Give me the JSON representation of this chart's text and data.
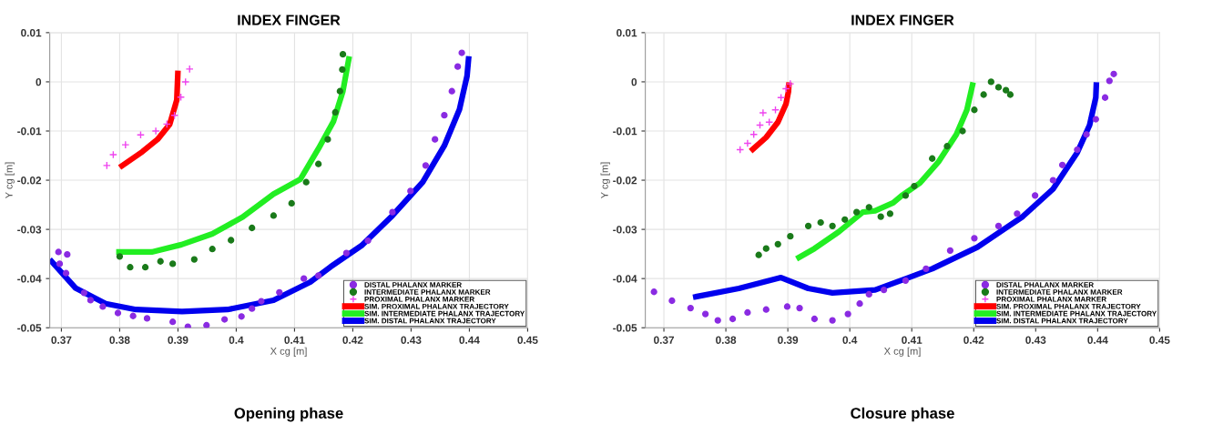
{
  "chart_data": [
    {
      "type": "scatter",
      "title": "INDEX FINGER",
      "xlabel": "X cg [m]",
      "ylabel": "Y cg [m]",
      "xlim": [
        0.368,
        0.45
      ],
      "ylim": [
        -0.05,
        0.01
      ],
      "xticks": [
        0.37,
        0.38,
        0.39,
        0.4,
        0.41,
        0.42,
        0.43,
        0.44,
        0.45
      ],
      "yticks": [
        -0.05,
        -0.04,
        -0.03,
        -0.02,
        -0.01,
        0,
        0.01
      ],
      "grid": true,
      "legend": "lower right",
      "annotations": [
        "Opening phase"
      ],
      "series": [
        {
          "name": "DISTAL PHALANX MARKER",
          "type": "scatter",
          "marker": "circle",
          "color": "#8a2be2",
          "x": [
            0.3695,
            0.3697,
            0.371,
            0.3708,
            0.3739,
            0.375,
            0.3771,
            0.3797,
            0.3823,
            0.3847,
            0.3891,
            0.3917,
            0.3949,
            0.398,
            0.4009,
            0.4027,
            0.4043,
            0.4074,
            0.4116,
            0.4141,
            0.4189,
            0.4226,
            0.4268,
            0.4299,
            0.4325,
            0.4341,
            0.4357,
            0.437,
            0.438,
            0.4387
          ],
          "values": [
            -0.0346,
            -0.037,
            -0.0351,
            -0.0389,
            -0.0429,
            -0.0444,
            -0.0457,
            -0.047,
            -0.0476,
            -0.0481,
            -0.0488,
            -0.0498,
            -0.0495,
            -0.0483,
            -0.0477,
            -0.0461,
            -0.0446,
            -0.0428,
            -0.04,
            -0.0394,
            -0.0348,
            -0.0323,
            -0.0265,
            -0.0222,
            -0.017,
            -0.0117,
            -0.0068,
            -0.0019,
            0.0031,
            0.0059
          ]
        },
        {
          "name": "INTERMEDIATE PHALANX MARKER",
          "type": "scatter",
          "marker": "circle",
          "color": "#1a7a1a",
          "x": [
            0.38,
            0.3818,
            0.3844,
            0.387,
            0.3891,
            0.3928,
            0.3959,
            0.3991,
            0.4027,
            0.4064,
            0.4095,
            0.412,
            0.4141,
            0.4157,
            0.417,
            0.4178,
            0.4182,
            0.4183
          ],
          "values": [
            -0.0355,
            -0.0377,
            -0.0377,
            -0.0365,
            -0.037,
            -0.0361,
            -0.034,
            -0.0322,
            -0.0297,
            -0.0272,
            -0.0247,
            -0.0204,
            -0.0167,
            -0.0117,
            -0.0062,
            -0.0019,
            0.0025,
            0.0056
          ]
        },
        {
          "name": "PROXIMAL PHALANX MARKER",
          "type": "scatter",
          "marker": "cross",
          "color": "#ee44ee",
          "x": [
            0.3778,
            0.3789,
            0.381,
            0.3836,
            0.3862,
            0.3881,
            0.3894,
            0.3905,
            0.3913,
            0.392
          ],
          "values": [
            -0.017,
            -0.0148,
            -0.0128,
            -0.0108,
            -0.01,
            -0.0086,
            -0.0068,
            -0.0031,
            0.0,
            0.0026
          ]
        },
        {
          "name": "SIM. PROXIMAL PHALANX TRAJECTORY",
          "type": "line",
          "color": "#ff0000",
          "x": [
            0.39,
            0.3898,
            0.3886,
            0.3865,
            0.3839,
            0.38
          ],
          "values": [
            0.0023,
            -0.0037,
            -0.0086,
            -0.0117,
            -0.0142,
            -0.0174
          ]
        },
        {
          "name": "SIM. INTERMEDIATE PHALANX TRAJECTORY",
          "type": "line",
          "color": "#22ee22",
          "x": [
            0.3794,
            0.3855,
            0.3906,
            0.3959,
            0.4011,
            0.4064,
            0.411,
            0.4141,
            0.4167,
            0.4183,
            0.4194
          ],
          "values": [
            -0.0346,
            -0.0346,
            -0.0331,
            -0.0309,
            -0.0275,
            -0.0228,
            -0.0198,
            -0.0136,
            -0.008,
            -0.0019,
            0.0052
          ]
        },
        {
          "name": "SIM. DISTAL PHALANX TRAJECTORY",
          "type": "line",
          "color": "#0000ee",
          "x": [
            0.368,
            0.3724,
            0.3776,
            0.3828,
            0.3907,
            0.3985,
            0.4064,
            0.4127,
            0.4162,
            0.4215,
            0.4268,
            0.432,
            0.4357,
            0.4383,
            0.4396,
            0.4399
          ],
          "values": [
            -0.0361,
            -0.0419,
            -0.0451,
            -0.0463,
            -0.0467,
            -0.0463,
            -0.0444,
            -0.0407,
            -0.0376,
            -0.0333,
            -0.0272,
            -0.0204,
            -0.013,
            -0.0056,
            0.0012,
            0.0052
          ]
        }
      ]
    },
    {
      "type": "scatter",
      "title": "INDEX FINGER",
      "xlabel": "X cg [m]",
      "ylabel": "Y cg [m]",
      "xlim": [
        0.367,
        0.45
      ],
      "ylim": [
        -0.05,
        0.01
      ],
      "xticks": [
        0.37,
        0.38,
        0.39,
        0.4,
        0.41,
        0.42,
        0.43,
        0.44,
        0.45
      ],
      "yticks": [
        -0.05,
        -0.04,
        -0.03,
        -0.02,
        -0.01,
        0,
        0.01
      ],
      "grid": true,
      "legend": "lower right",
      "annotations": [
        "Closure phase"
      ],
      "series": [
        {
          "name": "DISTAL PHALANX MARKER",
          "type": "scatter",
          "marker": "circle",
          "color": "#8a2be2",
          "x": [
            0.3684,
            0.3713,
            0.3743,
            0.3767,
            0.3787,
            0.3811,
            0.3835,
            0.3865,
            0.3899,
            0.3919,
            0.3943,
            0.3972,
            0.3997,
            0.4016,
            0.4031,
            0.4055,
            0.409,
            0.4123,
            0.4162,
            0.4201,
            0.424,
            0.427,
            0.4299,
            0.4328,
            0.4343,
            0.4367,
            0.4382,
            0.4397,
            0.4412,
            0.4419,
            0.4426
          ],
          "values": [
            -0.0427,
            -0.0445,
            -0.046,
            -0.0472,
            -0.0485,
            -0.0482,
            -0.0469,
            -0.0463,
            -0.0457,
            -0.046,
            -0.0482,
            -0.0485,
            -0.0472,
            -0.0451,
            -0.0432,
            -0.0423,
            -0.0404,
            -0.038,
            -0.0343,
            -0.0318,
            -0.0293,
            -0.0268,
            -0.0231,
            -0.02,
            -0.0169,
            -0.0138,
            -0.0107,
            -0.0076,
            -0.0032,
            0.0002,
            0.0016
          ]
        },
        {
          "name": "INTERMEDIATE PHALANX MARKER",
          "type": "scatter",
          "marker": "circle",
          "color": "#1a7a1a",
          "x": [
            0.3853,
            0.3865,
            0.3884,
            0.3904,
            0.3933,
            0.3953,
            0.3972,
            0.3992,
            0.4011,
            0.4031,
            0.405,
            0.4065,
            0.409,
            0.4104,
            0.4133,
            0.4157,
            0.4182,
            0.4201,
            0.4216,
            0.4228,
            0.424,
            0.4252,
            0.4259
          ],
          "values": [
            -0.0352,
            -0.0339,
            -0.033,
            -0.0314,
            -0.0293,
            -0.0286,
            -0.0293,
            -0.028,
            -0.0265,
            -0.0255,
            -0.0274,
            -0.0268,
            -0.0231,
            -0.0212,
            -0.0156,
            -0.0131,
            -0.01,
            -0.0057,
            -0.0026,
            0.0,
            -0.0011,
            -0.0017,
            -0.0026
          ]
        },
        {
          "name": "PROXIMAL PHALANX MARKER",
          "type": "scatter",
          "marker": "cross",
          "color": "#ee44ee",
          "x": [
            0.3823,
            0.3835,
            0.3845,
            0.3855,
            0.386,
            0.387,
            0.388,
            0.3889,
            0.3897,
            0.3904
          ],
          "values": [
            -0.0138,
            -0.0125,
            -0.0107,
            -0.0088,
            -0.0063,
            -0.0082,
            -0.0057,
            -0.0032,
            -0.0014,
            -0.0004
          ]
        },
        {
          "name": "SIM. PROXIMAL PHALANX TRAJECTORY",
          "type": "line",
          "color": "#ff0000",
          "x": [
            0.384,
            0.3865,
            0.3884,
            0.3897,
            0.3901,
            0.3902
          ],
          "values": [
            -0.0141,
            -0.0113,
            -0.0082,
            -0.0045,
            -0.002,
            -0.0001
          ]
        },
        {
          "name": "SIM. INTERMEDIATE PHALANX TRAJECTORY",
          "type": "line",
          "color": "#22ee22",
          "x": [
            0.3914,
            0.3943,
            0.3982,
            0.4021,
            0.4041,
            0.407,
            0.4084,
            0.4113,
            0.4143,
            0.4172,
            0.4189,
            0.4199
          ],
          "values": [
            -0.036,
            -0.0339,
            -0.0305,
            -0.0265,
            -0.0262,
            -0.0246,
            -0.0231,
            -0.0206,
            -0.0163,
            -0.0107,
            -0.0057,
            -0.0001
          ]
        },
        {
          "name": "SIM. DISTAL PHALANX TRAJECTORY",
          "type": "line",
          "color": "#0000ee",
          "x": [
            0.3747,
            0.3821,
            0.3889,
            0.3933,
            0.3972,
            0.4041,
            0.4095,
            0.4133,
            0.4206,
            0.4279,
            0.4328,
            0.4367,
            0.4387,
            0.4397,
            0.4398
          ],
          "values": [
            -0.0438,
            -0.042,
            -0.0398,
            -0.042,
            -0.0429,
            -0.0423,
            -0.0398,
            -0.038,
            -0.0336,
            -0.0274,
            -0.0218,
            -0.0144,
            -0.0088,
            -0.0032,
            -0.0001
          ]
        }
      ]
    }
  ]
}
